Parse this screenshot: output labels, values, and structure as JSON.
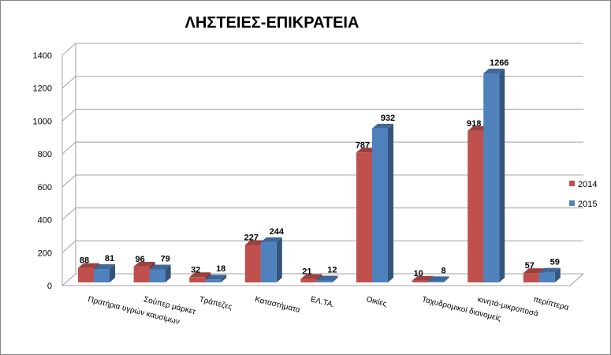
{
  "chart_data": {
    "type": "bar",
    "title": "ΛΗΣΤΕΙΕΣ-ΕΠΙΚΡΑΤΕΙΑ",
    "xlabel": "",
    "ylabel": "",
    "ylim": [
      0,
      1400
    ],
    "yticks": [
      "0",
      "200",
      "400",
      "600",
      "800",
      "1000",
      "1200",
      "1400"
    ],
    "grid": true,
    "legend_position": "right",
    "categories": [
      "Πρατήρια υγρών καυσίμων",
      "Σούπερ μάρκετ",
      "Τράπεζες",
      "Καταστήματα",
      "ΕΛ.ΤΑ.",
      "Οικίες",
      "Ταχυδρομικοί διανομείς",
      "κινητά-μικροποσά",
      "περίπτερα"
    ],
    "series": [
      {
        "name": "2014",
        "color": "#C0504D",
        "values": [
          88,
          96,
          32,
          227,
          21,
          787,
          10,
          918,
          57
        ]
      },
      {
        "name": "2015",
        "color": "#4F81BD",
        "values": [
          81,
          79,
          18,
          244,
          12,
          932,
          8,
          1266,
          59
        ]
      }
    ]
  }
}
